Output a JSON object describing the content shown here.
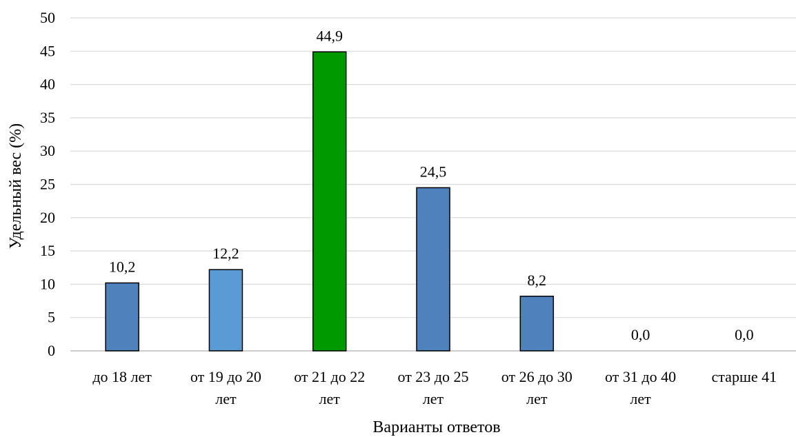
{
  "chart_data": {
    "type": "bar",
    "title": "",
    "xlabel": "Варианты ответов",
    "ylabel": "Удельный вес (%)",
    "ylim": [
      0,
      50
    ],
    "yticks": [
      0,
      5,
      10,
      15,
      20,
      25,
      30,
      35,
      40,
      45,
      50
    ],
    "grid": true,
    "categories": [
      [
        "до 18 лет"
      ],
      [
        "от 19  до 20",
        "лет"
      ],
      [
        "от 21  до 22",
        "лет"
      ],
      [
        "от 23  до 25",
        "лет"
      ],
      [
        "от 26  до 30",
        "лет"
      ],
      [
        "от 31  до 40",
        "лет"
      ],
      [
        "старше 41"
      ]
    ],
    "values": [
      10.2,
      12.2,
      44.9,
      24.5,
      8.2,
      0.0,
      0.0
    ],
    "value_labels": [
      "10,2",
      "12,2",
      "44,9",
      "24,5",
      "8,2",
      "0,0",
      "0,0"
    ],
    "bar_colors": [
      "#4f81bd",
      "#5b9bd5",
      "#009900",
      "#4f81bd",
      "#4f81bd",
      "#4f81bd",
      "#4f81bd"
    ]
  }
}
